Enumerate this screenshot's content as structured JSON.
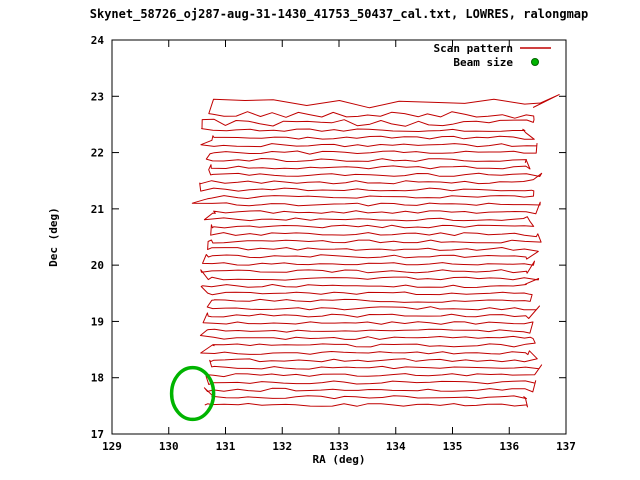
{
  "chart_data": {
    "type": "line",
    "title": "Skynet_58726_oj287-aug-31-1430_41753_50437_cal.txt, LOWRES, ralongmap",
    "xlabel": "RA (deg)",
    "ylabel": "Dec (deg)",
    "xlim": [
      129,
      137
    ],
    "ylim": [
      17,
      24
    ],
    "xticks": [
      129,
      130,
      131,
      132,
      133,
      134,
      135,
      136,
      137
    ],
    "yticks": [
      17,
      18,
      19,
      20,
      21,
      22,
      23,
      24
    ],
    "grid": false,
    "legend_position": "top-right-inside",
    "legend": [
      {
        "label": "Scan pattern",
        "color": "#c00000",
        "marker": "line"
      },
      {
        "label": "Beam size",
        "color": "#00b400",
        "marker": "dot"
      }
    ],
    "series": [
      {
        "name": "Scan pattern",
        "type": "raster-scan",
        "color": "#c00000",
        "scan": {
          "rows": 40,
          "dec_start": 17.52,
          "dec_end": 22.66,
          "ra_left": 130.78,
          "ra_right": 136.28,
          "edge_overshoot_left": 0.24,
          "edge_overshoot_right": 0.3,
          "dec_jitter": 0.028,
          "points_per_row": 26,
          "cap_dec": 22.88,
          "cap_jitter": 0.09,
          "cap_spike_ra": 136.88,
          "cap_spike_dec": 23.03,
          "seed": 42
        }
      },
      {
        "name": "Beam size",
        "type": "ellipse",
        "color": "#00b400",
        "center_ra": 130.42,
        "center_dec": 17.72,
        "rx_deg": 0.37,
        "ry_deg": 0.46
      }
    ]
  },
  "plot": {
    "bg": "#ffffff",
    "border_color": "#000000",
    "axis_text_color": "#000000"
  }
}
